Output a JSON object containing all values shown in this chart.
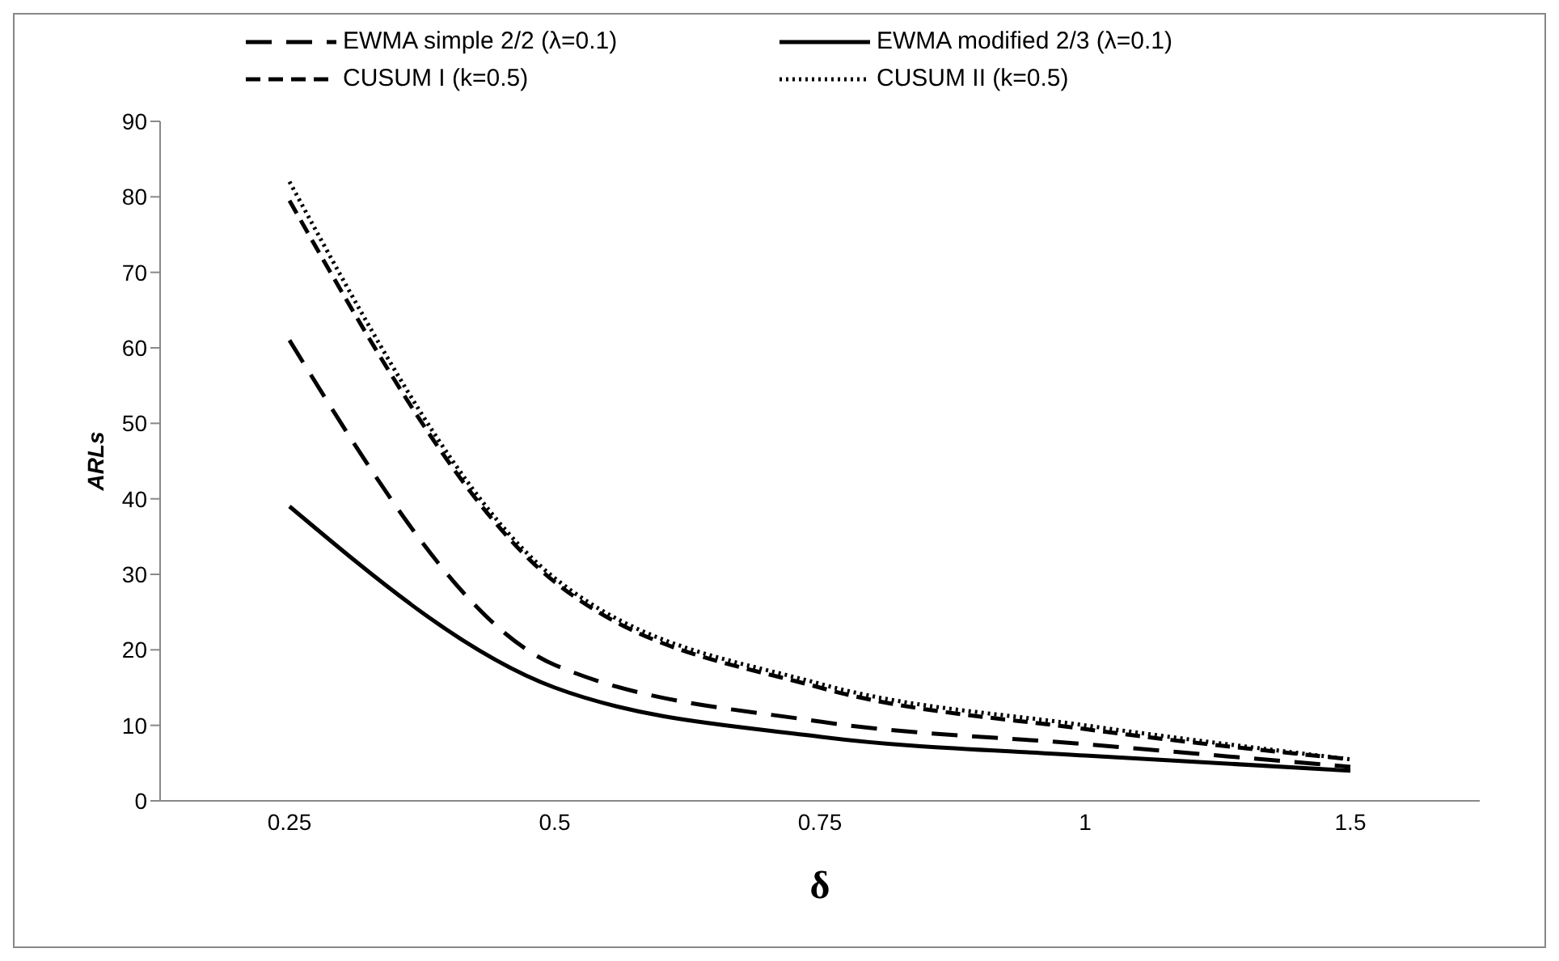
{
  "chart_data": {
    "type": "line",
    "xlabel": "δ",
    "ylabel": "ARLs",
    "categories": [
      "0.25",
      "0.5",
      "0.75",
      "1",
      "1.5"
    ],
    "ylim": [
      0,
      90
    ],
    "yticks": [
      0,
      10,
      20,
      30,
      40,
      50,
      60,
      70,
      80,
      90
    ],
    "grid": false,
    "legend": "top",
    "marker": "none",
    "series": [
      {
        "name": "EWMA simple 2/2 (λ=0.1)",
        "color": "#000000",
        "line_style": "dashed",
        "values": [
          61,
          18,
          10.5,
          7.5,
          4.5
        ]
      },
      {
        "name": "EWMA modified 2/3 (λ=0.1)",
        "color": "#000000",
        "line_style": "solid",
        "values": [
          39,
          15,
          8.5,
          6,
          4
        ]
      },
      {
        "name": "CUSUM I (k=0.5)",
        "color": "#000000",
        "line_style": "dashed",
        "values": [
          79.5,
          29,
          15,
          9.5,
          5.5
        ]
      },
      {
        "name": "CUSUM II (k=0.5)",
        "color": "#000000",
        "line_style": "dotted",
        "values": [
          82,
          29.5,
          15.5,
          10,
          5.5
        ]
      }
    ]
  }
}
